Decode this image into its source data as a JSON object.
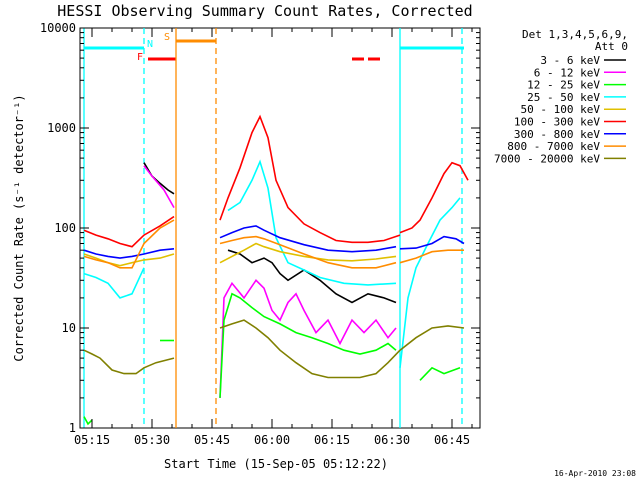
{
  "chart_data": {
    "type": "line",
    "title": "HESSI Observing Summary Count Rates, Corrected",
    "xlabel": "Start Time (15-Sep-05 05:12:22)",
    "ylabel": "Corrected Count Rate (s⁻¹ detector⁻¹)",
    "y_scale": "log",
    "ylim": [
      1,
      10000
    ],
    "xlim_minutes": [
      "05:12:22",
      "06:52:00"
    ],
    "x_ticks": [
      "05:15",
      "05:30",
      "05:45",
      "06:00",
      "06:15",
      "06:30",
      "06:45"
    ],
    "y_ticks": [
      "1",
      "10",
      "100",
      "1000",
      "10000"
    ],
    "legend_header": [
      "Det 1,3,4,5,6,9,",
      "Att 0"
    ],
    "legend_placement": "right",
    "timestamp": "16-Apr-2010 23:08",
    "flags": [
      {
        "label": "F",
        "color": "#ff0000",
        "segments": [
          [
            "05:29",
            "05:36"
          ],
          [
            "06:20",
            "06:23"
          ],
          [
            "06:24",
            "06:27"
          ]
        ]
      },
      {
        "label": "N",
        "color": "#00ffff",
        "segments": [
          [
            "05:13",
            "05:28"
          ],
          [
            "06:32",
            "06:48"
          ]
        ]
      },
      {
        "label": "S",
        "color": "#ff8c00",
        "segments": [
          [
            "05:36",
            "05:46"
          ]
        ]
      }
    ],
    "vlines": [
      {
        "t": "05:13",
        "color": "#00ffff",
        "style": "solid"
      },
      {
        "t": "05:28",
        "color": "#00ffff",
        "style": "dashed"
      },
      {
        "t": "05:36",
        "color": "#ff8c00",
        "style": "solid"
      },
      {
        "t": "05:46",
        "color": "#ff8c00",
        "style": "dashed"
      },
      {
        "t": "06:32",
        "color": "#00ffff",
        "style": "solid"
      },
      {
        "t": "06:47.5",
        "color": "#00ffff",
        "style": "dashed"
      }
    ],
    "series": [
      {
        "name": "3 - 6 keV",
        "color": "#000000",
        "segments": [
          [
            [
              "05:28",
              450
            ],
            [
              "05:30",
              330
            ],
            [
              "05:32",
              280
            ],
            [
              "05:34",
              240
            ],
            [
              "05:35.5",
              220
            ]
          ],
          [
            [
              "05:49",
              60
            ],
            [
              "05:52",
              55
            ],
            [
              "05:55",
              45
            ],
            [
              "05:58",
              50
            ],
            [
              "06:00",
              45
            ],
            [
              "06:02",
              35
            ],
            [
              "06:04",
              30
            ],
            [
              "06:08",
              38
            ],
            [
              "06:12",
              30
            ],
            [
              "06:16",
              22
            ],
            [
              "06:20",
              18
            ],
            [
              "06:24",
              22
            ],
            [
              "06:28",
              20
            ],
            [
              "06:31",
              18
            ]
          ]
        ]
      },
      {
        "name": "6 - 12 keV",
        "color": "#ff00ff",
        "segments": [
          [
            [
              "05:28",
              420
            ],
            [
              "05:30",
              330
            ],
            [
              "05:33",
              240
            ],
            [
              "05:35.5",
              160
            ]
          ],
          [
            [
              "05:47",
              2
            ],
            [
              "05:48",
              20
            ],
            [
              "05:50",
              28
            ],
            [
              "05:53",
              20
            ],
            [
              "05:56",
              30
            ],
            [
              "05:58",
              25
            ],
            [
              "06:00",
              15
            ],
            [
              "06:02",
              12
            ],
            [
              "06:04",
              18
            ],
            [
              "06:06",
              22
            ],
            [
              "06:08",
              15
            ],
            [
              "06:11",
              9
            ],
            [
              "06:14",
              12
            ],
            [
              "06:17",
              7
            ],
            [
              "06:20",
              12
            ],
            [
              "06:23",
              9
            ],
            [
              "06:26",
              12
            ],
            [
              "06:29",
              8
            ],
            [
              "06:31",
              10
            ]
          ]
        ]
      },
      {
        "name": "12 - 25 keV",
        "color": "#00ff00",
        "segments": [
          [
            [
              "05:13",
              1.3
            ],
            [
              "05:14",
              1.1
            ],
            [
              "05:15",
              1.2
            ]
          ],
          [
            [
              "05:32",
              7.5
            ],
            [
              "05:35.5",
              7.5
            ]
          ],
          [
            [
              "05:47",
              2
            ],
            [
              "05:48",
              12
            ],
            [
              "05:50",
              22
            ],
            [
              "05:52",
              20
            ],
            [
              "05:55",
              16
            ],
            [
              "05:58",
              13
            ],
            [
              "06:02",
              11
            ],
            [
              "06:06",
              9
            ],
            [
              "06:10",
              8
            ],
            [
              "06:14",
              7
            ],
            [
              "06:18",
              6
            ],
            [
              "06:22",
              5.5
            ],
            [
              "06:26",
              6
            ],
            [
              "06:29",
              7
            ],
            [
              "06:31",
              6
            ]
          ],
          [
            [
              "06:37",
              3
            ],
            [
              "06:40",
              4
            ],
            [
              "06:43",
              3.5
            ],
            [
              "06:47",
              4
            ]
          ]
        ]
      },
      {
        "name": "25 - 50 keV",
        "color": "#00ffff",
        "segments": [
          [
            [
              "05:13",
              35
            ],
            [
              "05:16",
              32
            ],
            [
              "05:19",
              28
            ],
            [
              "05:22",
              20
            ],
            [
              "05:25",
              22
            ],
            [
              "05:28",
              40
            ]
          ],
          [
            [
              "05:49",
              150
            ],
            [
              "05:52",
              180
            ],
            [
              "05:55",
              300
            ],
            [
              "05:57",
              460
            ],
            [
              "05:59",
              250
            ],
            [
              "06:01",
              80
            ],
            [
              "06:04",
              45
            ],
            [
              "06:08",
              38
            ],
            [
              "06:12",
              32
            ],
            [
              "06:18",
              28
            ],
            [
              "06:24",
              27
            ],
            [
              "06:31",
              28
            ]
          ],
          [
            [
              "06:32",
              4
            ],
            [
              "06:34",
              20
            ],
            [
              "06:36",
              40
            ],
            [
              "06:39",
              70
            ],
            [
              "06:42",
              120
            ],
            [
              "06:45",
              160
            ],
            [
              "06:47",
              200
            ]
          ]
        ]
      },
      {
        "name": "50 - 100 keV",
        "color": "#e0c000",
        "segments": [
          [
            [
              "05:13",
              55
            ],
            [
              "05:16",
              50
            ],
            [
              "05:19",
              45
            ],
            [
              "05:22",
              42
            ],
            [
              "05:25",
              45
            ],
            [
              "05:28",
              48
            ],
            [
              "05:32",
              50
            ],
            [
              "05:35.5",
              55
            ]
          ],
          [
            [
              "05:47",
              45
            ],
            [
              "05:50",
              52
            ],
            [
              "05:53",
              60
            ],
            [
              "05:56",
              70
            ],
            [
              "05:58",
              65
            ],
            [
              "06:02",
              58
            ],
            [
              "06:08",
              52
            ],
            [
              "06:14",
              48
            ],
            [
              "06:20",
              47
            ],
            [
              "06:26",
              49
            ],
            [
              "06:31",
              52
            ]
          ]
        ]
      },
      {
        "name": "100 - 300 keV",
        "color": "#ff0000",
        "segments": [
          [
            [
              "05:13",
              95
            ],
            [
              "05:16",
              85
            ],
            [
              "05:19",
              78
            ],
            [
              "05:22",
              70
            ],
            [
              "05:25",
              65
            ],
            [
              "05:28",
              85
            ],
            [
              "05:32",
              105
            ],
            [
              "05:35.5",
              130
            ]
          ],
          [
            [
              "05:47",
              120
            ],
            [
              "05:49",
              200
            ],
            [
              "05:52",
              400
            ],
            [
              "05:55",
              900
            ],
            [
              "05:57",
              1300
            ],
            [
              "05:59",
              800
            ],
            [
              "06:01",
              300
            ],
            [
              "06:04",
              160
            ],
            [
              "06:08",
              110
            ],
            [
              "06:12",
              90
            ],
            [
              "06:16",
              75
            ],
            [
              "06:20",
              72
            ],
            [
              "06:24",
              72
            ],
            [
              "06:28",
              75
            ],
            [
              "06:32",
              85
            ]
          ],
          [
            [
              "06:32",
              90
            ],
            [
              "06:35",
              100
            ],
            [
              "06:37",
              120
            ],
            [
              "06:40",
              200
            ],
            [
              "06:43",
              350
            ],
            [
              "06:45",
              450
            ],
            [
              "06:47",
              420
            ],
            [
              "06:49",
              300
            ]
          ]
        ]
      },
      {
        "name": "300 - 800 keV",
        "color": "#0000ff",
        "segments": [
          [
            [
              "05:13",
              60
            ],
            [
              "05:16",
              55
            ],
            [
              "05:19",
              52
            ],
            [
              "05:22",
              50
            ],
            [
              "05:25",
              52
            ],
            [
              "05:28",
              55
            ],
            [
              "05:32",
              60
            ],
            [
              "05:35.5",
              62
            ]
          ],
          [
            [
              "05:47",
              80
            ],
            [
              "05:50",
              90
            ],
            [
              "05:53",
              100
            ],
            [
              "05:56",
              105
            ],
            [
              "05:58",
              95
            ],
            [
              "06:02",
              80
            ],
            [
              "06:08",
              68
            ],
            [
              "06:14",
              60
            ],
            [
              "06:20",
              58
            ],
            [
              "06:26",
              60
            ],
            [
              "06:31",
              65
            ]
          ],
          [
            [
              "06:32",
              62
            ],
            [
              "06:36",
              63
            ],
            [
              "06:40",
              70
            ],
            [
              "06:43",
              82
            ],
            [
              "06:46",
              78
            ],
            [
              "06:48",
              70
            ]
          ]
        ]
      },
      {
        "name": "800 - 7000 keV",
        "color": "#ff8c00",
        "segments": [
          [
            [
              "05:13",
              52
            ],
            [
              "05:16",
              48
            ],
            [
              "05:19",
              45
            ],
            [
              "05:22",
              40
            ],
            [
              "05:25",
              40
            ],
            [
              "05:28",
              70
            ],
            [
              "05:32",
              100
            ],
            [
              "05:35.5",
              120
            ]
          ],
          [
            [
              "05:47",
              70
            ],
            [
              "05:50",
              75
            ],
            [
              "05:53",
              80
            ],
            [
              "05:56",
              82
            ],
            [
              "05:58",
              78
            ],
            [
              "06:02",
              68
            ],
            [
              "06:08",
              55
            ],
            [
              "06:14",
              45
            ],
            [
              "06:20",
              40
            ],
            [
              "06:26",
              40
            ],
            [
              "06:31",
              45
            ]
          ],
          [
            [
              "06:32",
              45
            ],
            [
              "06:36",
              50
            ],
            [
              "06:40",
              58
            ],
            [
              "06:44",
              60
            ],
            [
              "06:48",
              60
            ]
          ]
        ]
      },
      {
        "name": "7000 - 20000 keV",
        "color": "#808000",
        "segments": [
          [
            [
              "05:13",
              6
            ],
            [
              "05:15",
              5.5
            ],
            [
              "05:17",
              5
            ],
            [
              "05:20",
              3.8
            ],
            [
              "05:23",
              3.5
            ],
            [
              "05:26",
              3.5
            ],
            [
              "05:28",
              4
            ],
            [
              "05:31",
              4.5
            ],
            [
              "05:35.5",
              5
            ]
          ],
          [
            [
              "05:47",
              10
            ],
            [
              "05:50",
              11
            ],
            [
              "05:53",
              12
            ],
            [
              "05:56",
              10
            ],
            [
              "05:59",
              8
            ],
            [
              "06:02",
              6
            ],
            [
              "06:06",
              4.5
            ],
            [
              "06:10",
              3.5
            ],
            [
              "06:14",
              3.2
            ],
            [
              "06:18",
              3.2
            ],
            [
              "06:22",
              3.2
            ],
            [
              "06:26",
              3.5
            ],
            [
              "06:29",
              4.5
            ],
            [
              "06:32",
              6
            ]
          ],
          [
            [
              "06:32",
              6
            ],
            [
              "06:36",
              8
            ],
            [
              "06:40",
              10
            ],
            [
              "06:44",
              10.5
            ],
            [
              "06:48",
              10
            ]
          ]
        ]
      }
    ]
  }
}
